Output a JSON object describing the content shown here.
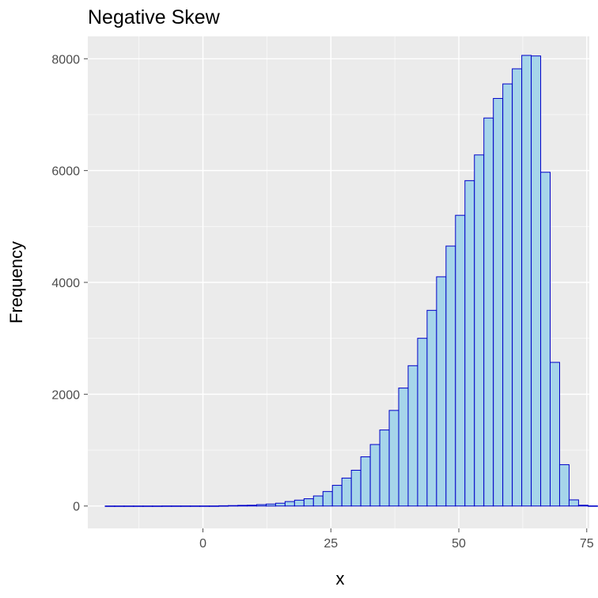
{
  "chart_data": {
    "type": "bar",
    "title": "Negative Skew",
    "xlabel": "x",
    "ylabel": "Frequency",
    "xlim": [
      -22.5,
      75.5
    ],
    "ylim": [
      -400,
      8400
    ],
    "x_ticks": [
      0,
      25,
      50,
      75
    ],
    "x_tick_labels": [
      "0",
      "25",
      "50",
      "75"
    ],
    "y_ticks": [
      0,
      2000,
      4000,
      6000,
      8000
    ],
    "y_tick_labels": [
      "0",
      "2000",
      "4000",
      "6000",
      "8000"
    ],
    "grid": true,
    "bin_width": 1.85,
    "bin_start": -19.1,
    "values": [
      1,
      1,
      1,
      1,
      1,
      1,
      2,
      2,
      2,
      2,
      2,
      2,
      5,
      8,
      12,
      15,
      25,
      35,
      50,
      80,
      105,
      130,
      180,
      260,
      370,
      500,
      640,
      880,
      1100,
      1360,
      1710,
      2110,
      2510,
      3000,
      3500,
      4100,
      4650,
      5200,
      5820,
      6280,
      6940,
      7290,
      7550,
      7820,
      8060,
      8050,
      5970,
      2570,
      740,
      110,
      15,
      3
    ],
    "fill_color": "#a6d5ea",
    "edge_color": "#0000c8",
    "panel_color": "#ebebeb"
  }
}
